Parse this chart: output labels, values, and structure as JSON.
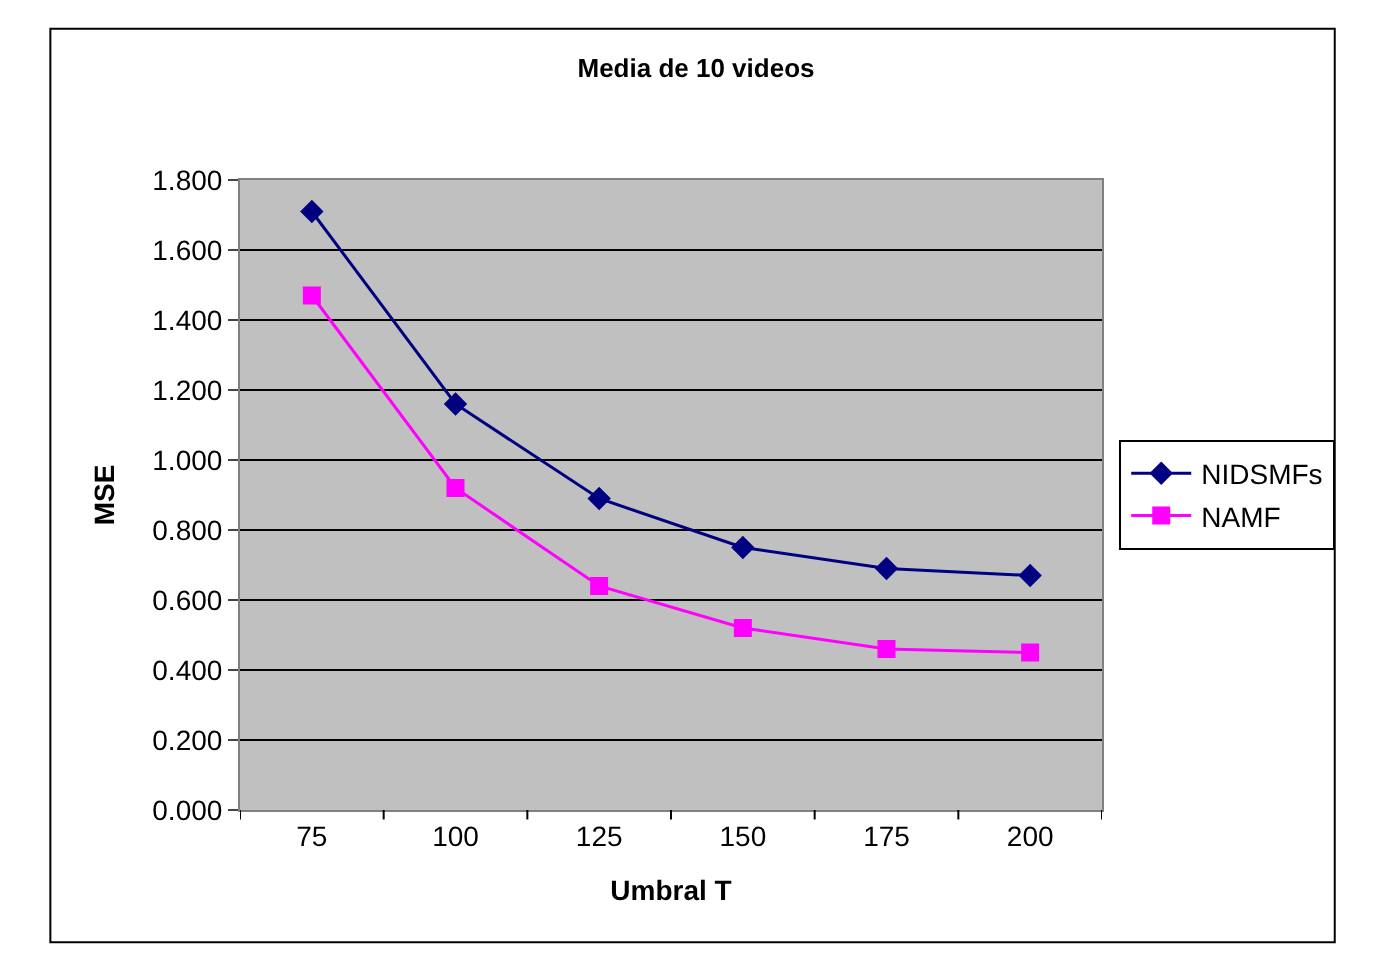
{
  "chart_data": {
    "type": "line",
    "title": "Media de 10 videos",
    "xlabel": "Umbral T",
    "ylabel": "MSE",
    "categories": [
      "75",
      "100",
      "125",
      "150",
      "175",
      "200"
    ],
    "series": [
      {
        "name": "NIDSMFs",
        "color": "#000080",
        "marker": "diamond",
        "values": [
          1.71,
          1.16,
          0.89,
          0.75,
          0.69,
          0.67
        ]
      },
      {
        "name": "NAMF",
        "color": "#ff00ff",
        "marker": "square",
        "values": [
          1.47,
          0.92,
          0.64,
          0.52,
          0.46,
          0.45
        ]
      }
    ],
    "ylim": [
      0,
      1.8
    ],
    "yticks": [
      {
        "value": 0,
        "label": "0.000"
      },
      {
        "value": 0.2,
        "label": "0.200"
      },
      {
        "value": 0.4,
        "label": "0.400"
      },
      {
        "value": 0.6,
        "label": "0.600"
      },
      {
        "value": 0.8,
        "label": "0.800"
      },
      {
        "value": 1.0,
        "label": "1.000"
      },
      {
        "value": 1.2,
        "label": "1.200"
      },
      {
        "value": 1.4,
        "label": "1.400"
      },
      {
        "value": 1.6,
        "label": "1.600"
      },
      {
        "value": 1.8,
        "label": "1.800"
      }
    ],
    "grid": "y",
    "legend": "right",
    "line_style": "solid"
  }
}
